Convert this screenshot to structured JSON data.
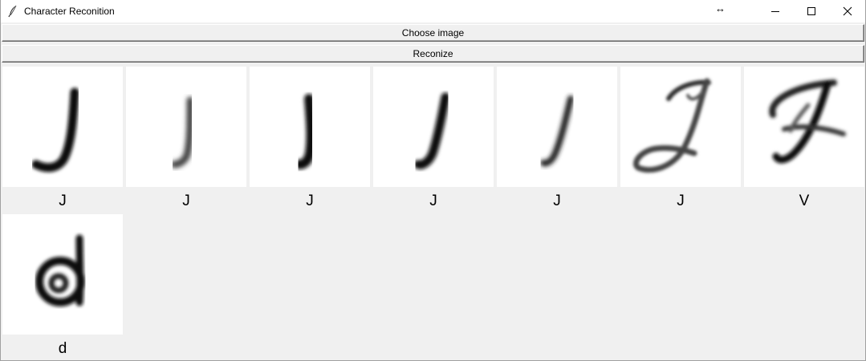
{
  "window": {
    "title": "Character Reconition",
    "resize_hint": "↔",
    "icons": [
      "feather-icon",
      "minimize-icon",
      "maximize-icon",
      "close-icon"
    ]
  },
  "buttons": {
    "choose": "Choose image",
    "recognize": "Reconize"
  },
  "results": [
    {
      "label": "J"
    },
    {
      "label": "J"
    },
    {
      "label": "J"
    },
    {
      "label": "J"
    },
    {
      "label": "J"
    },
    {
      "label": "J"
    },
    {
      "label": "V"
    },
    {
      "label": "d"
    }
  ]
}
